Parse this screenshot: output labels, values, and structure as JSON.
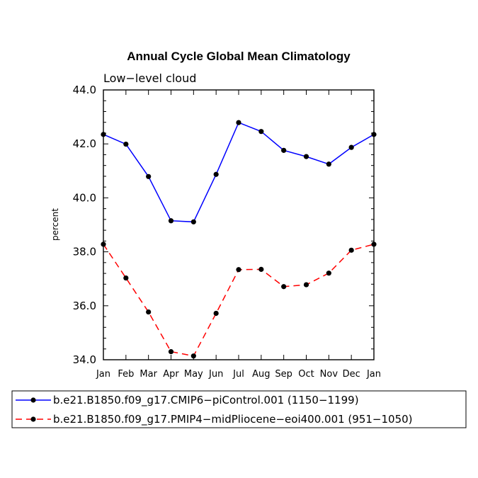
{
  "chart_data": {
    "type": "line",
    "title": "Annual Cycle Global Mean Climatology",
    "subtitle": "Low−level cloud",
    "xlabel": "",
    "ylabel": "percent",
    "categories": [
      "Jan",
      "Feb",
      "Mar",
      "Apr",
      "May",
      "Jun",
      "Jul",
      "Aug",
      "Sep",
      "Oct",
      "Nov",
      "Dec",
      "Jan"
    ],
    "ylim": [
      34.0,
      44.0
    ],
    "yticks": [
      "34.0",
      "36.0",
      "38.0",
      "40.0",
      "42.0",
      "44.0"
    ],
    "series": [
      {
        "name": "b.e21.B1850.f09_g17.CMIP6−piControl.001 (1150−1199)",
        "color": "#0000ff",
        "dash": "solid",
        "values": [
          42.35,
          41.99,
          40.79,
          39.15,
          39.11,
          40.87,
          42.79,
          42.46,
          41.76,
          41.53,
          41.25,
          41.87,
          42.35
        ]
      },
      {
        "name": "b.e21.B1850.f09_g17.PMIP4−midPliocene−eoi400.001 (951−1050)",
        "color": "#ff0000",
        "dash": "dashed",
        "values": [
          38.28,
          37.03,
          35.77,
          34.3,
          34.14,
          35.72,
          37.34,
          37.35,
          36.71,
          36.78,
          37.21,
          38.06,
          38.28
        ]
      }
    ],
    "legend_position": "bottom"
  }
}
